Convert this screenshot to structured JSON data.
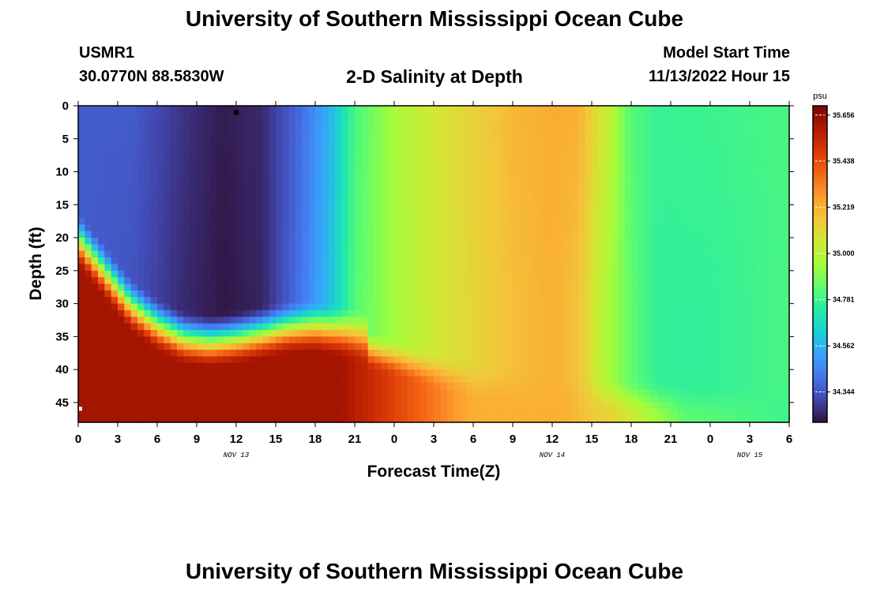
{
  "header": {
    "title": "University of Southern Mississippi Ocean Cube",
    "station_id": "USMR1",
    "station_coords": "30.0770N  88.5830W",
    "chart_title": "2-D Salinity at Depth",
    "model_start_label": "Model Start Time",
    "model_start_value": "11/13/2022 Hour 15"
  },
  "footer": {
    "title": "University of Southern Mississippi Ocean Cube"
  },
  "chart_data": {
    "type": "heatmap",
    "title": "2-D Salinity at Depth",
    "xlabel": "Forecast Time(Z)",
    "ylabel": "Depth (ft)",
    "x_hours_range": [
      0,
      54
    ],
    "x_tick_hours": [
      0,
      3,
      6,
      9,
      12,
      15,
      18,
      21,
      24,
      27,
      30,
      33,
      36,
      39,
      42,
      45,
      48,
      51,
      54
    ],
    "x_tick_labels": [
      "0",
      "3",
      "6",
      "9",
      "12",
      "15",
      "18",
      "21",
      "0",
      "3",
      "6",
      "9",
      "12",
      "15",
      "18",
      "21",
      "0",
      "3",
      "6"
    ],
    "date_labels": [
      {
        "hour": 12,
        "text": "NOV 13"
      },
      {
        "hour": 36,
        "text": "NOV 14"
      },
      {
        "hour": 51,
        "text": "NOV 15"
      }
    ],
    "ylim": [
      0,
      48
    ],
    "y_ticks": [
      0,
      5,
      10,
      15,
      20,
      25,
      30,
      35,
      40,
      45
    ],
    "colorbar": {
      "unit": "psu",
      "min": 34.2,
      "max": 35.7,
      "tick_values": [
        34.344,
        34.562,
        34.781,
        35.0,
        35.219,
        35.438,
        35.656
      ],
      "tick_labels": [
        "34.344",
        "34.562",
        "34.781",
        "35.000",
        "35.219",
        "35.438",
        "35.656"
      ],
      "colormap": [
        "#30123b",
        "#4145ab",
        "#4675ed",
        "#39a2fc",
        "#1bcfd4",
        "#24eca6",
        "#61fc6c",
        "#a4fc3b",
        "#d1e834",
        "#f3c63a",
        "#fe9b2d",
        "#f36315",
        "#d93806",
        "#b11901",
        "#7a0402"
      ]
    },
    "halocline_depth_ft_by_hour": {
      "hours": [
        0,
        2,
        4,
        6,
        8,
        10,
        12,
        14,
        16,
        18,
        20,
        22,
        24
      ],
      "depth": [
        23,
        28,
        33,
        36,
        38,
        38.5,
        38,
        37.2,
        36.4,
        36.2,
        37,
        38,
        38
      ]
    },
    "series_notes": "Surface ~34.25 psu (hours 0-18) rising to ~35.3 psu near hour 36 then falling to ~34.8 psu; bottom layer ~35.6 psu"
  }
}
